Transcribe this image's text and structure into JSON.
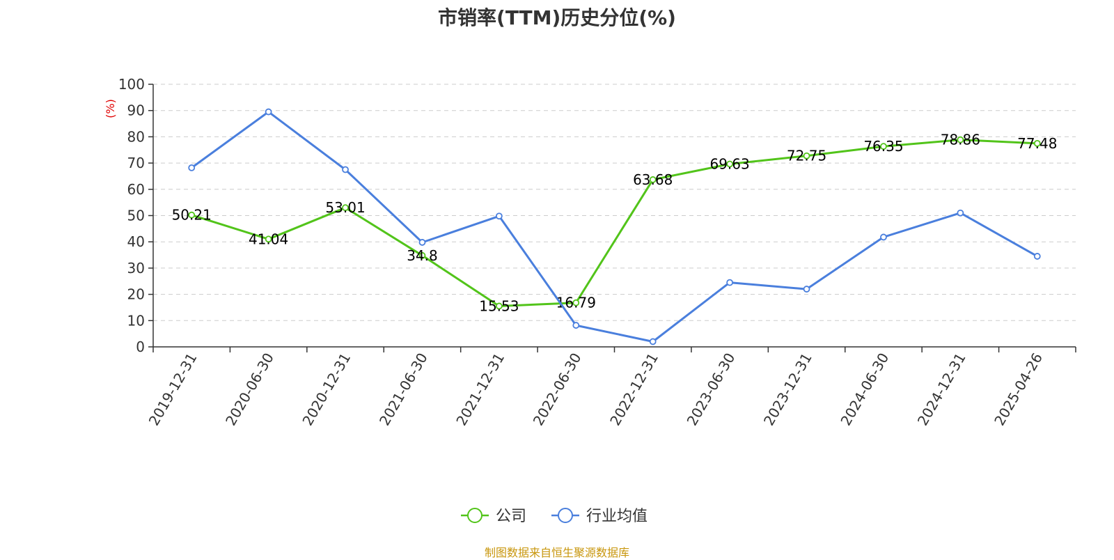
{
  "title": "市销率(TTM)历史分位(%)",
  "source": "制图数据来自恒生聚源数据库",
  "colors": {
    "company": "#52c41a",
    "industry": "#4a7fdd",
    "unit": "#e00000",
    "grid": "#cccccc",
    "axis": "#333333"
  },
  "chart_data": {
    "type": "line",
    "title": "市销率(TTM)历史分位(%)",
    "ylabel": "(%)",
    "xlabel": "",
    "ylim": [
      0,
      100
    ],
    "yticks": [
      0,
      10,
      20,
      30,
      40,
      50,
      60,
      70,
      80,
      90,
      100
    ],
    "grid": "horizontal-dashed",
    "legend_position": "bottom-center",
    "categories": [
      "2019-12-31",
      "2020-06-30",
      "2020-12-31",
      "2021-06-30",
      "2021-12-31",
      "2022-06-30",
      "2022-12-31",
      "2023-06-30",
      "2023-12-31",
      "2024-06-30",
      "2024-12-31",
      "2025-04-26"
    ],
    "series": [
      {
        "name": "公司",
        "color": "#52c41a",
        "labels_shown": true,
        "values": [
          50.21,
          41.04,
          53.01,
          34.8,
          15.53,
          16.79,
          63.68,
          69.63,
          72.75,
          76.35,
          78.86,
          77.48
        ]
      },
      {
        "name": "行业均值",
        "color": "#4a7fdd",
        "labels_shown": false,
        "values": [
          68.2,
          89.5,
          67.5,
          39.8,
          49.8,
          8.2,
          2.0,
          24.5,
          22.0,
          41.8,
          51.0,
          34.5
        ]
      }
    ]
  }
}
